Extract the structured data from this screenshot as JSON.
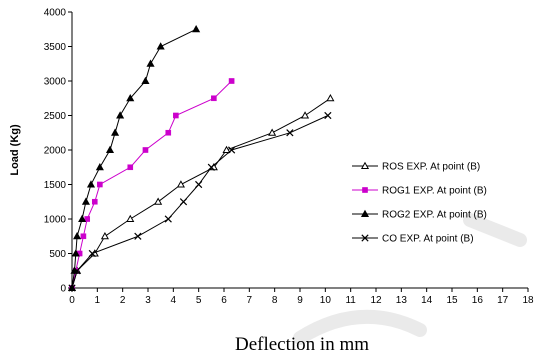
{
  "chart_data": {
    "type": "line",
    "title": "",
    "xlabel": "Deflection in mm",
    "ylabel": "Load  (Kg)",
    "xlim": [
      0,
      18
    ],
    "ylim": [
      0,
      4000
    ],
    "x_ticks": [
      0,
      1,
      2,
      3,
      4,
      5,
      6,
      7,
      8,
      9,
      10,
      11,
      12,
      13,
      14,
      15,
      16,
      17,
      18
    ],
    "y_ticks": [
      0,
      500,
      1000,
      1500,
      2000,
      2500,
      3000,
      3500,
      4000
    ],
    "grid": false,
    "legend_position": "right",
    "series": [
      {
        "name": "ROS  EXP.  At point (B)",
        "color": "#000000",
        "marker": "triangle-open",
        "points": [
          [
            0,
            0
          ],
          [
            0.2,
            250
          ],
          [
            0.9,
            500
          ],
          [
            1.3,
            750
          ],
          [
            2.3,
            1000
          ],
          [
            3.4,
            1250
          ],
          [
            4.3,
            1500
          ],
          [
            5.6,
            1750
          ],
          [
            6.1,
            2000
          ],
          [
            7.9,
            2250
          ],
          [
            9.2,
            2500
          ],
          [
            10.2,
            2750
          ]
        ]
      },
      {
        "name": "ROG1  EXP.  At point (B)",
        "color": "#cc00cc",
        "marker": "square",
        "points": [
          [
            0,
            0
          ],
          [
            0.15,
            250
          ],
          [
            0.3,
            500
          ],
          [
            0.45,
            750
          ],
          [
            0.6,
            1000
          ],
          [
            0.9,
            1250
          ],
          [
            1.1,
            1500
          ],
          [
            2.3,
            1750
          ],
          [
            2.9,
            2000
          ],
          [
            3.8,
            2250
          ],
          [
            4.1,
            2500
          ],
          [
            5.6,
            2750
          ],
          [
            6.3,
            3000
          ]
        ]
      },
      {
        "name": "ROG2  EXP.  At point (B)",
        "color": "#000000",
        "marker": "triangle-filled",
        "points": [
          [
            0,
            0
          ],
          [
            0.1,
            250
          ],
          [
            0.15,
            500
          ],
          [
            0.2,
            750
          ],
          [
            0.4,
            1000
          ],
          [
            0.55,
            1250
          ],
          [
            0.75,
            1500
          ],
          [
            1.1,
            1750
          ],
          [
            1.5,
            2000
          ],
          [
            1.7,
            2250
          ],
          [
            1.9,
            2500
          ],
          [
            2.3,
            2750
          ],
          [
            2.9,
            3000
          ],
          [
            3.1,
            3250
          ],
          [
            3.5,
            3500
          ],
          [
            4.9,
            3750
          ]
        ]
      },
      {
        "name": "CO EXP.  At point (B)",
        "color": "#000000",
        "marker": "x",
        "points": [
          [
            0,
            0
          ],
          [
            0.2,
            250
          ],
          [
            0.8,
            500
          ],
          [
            2.6,
            750
          ],
          [
            3.8,
            1000
          ],
          [
            4.4,
            1250
          ],
          [
            5.0,
            1500
          ],
          [
            5.5,
            1750
          ],
          [
            6.3,
            2000
          ],
          [
            8.6,
            2250
          ],
          [
            10.1,
            2500
          ]
        ]
      }
    ]
  }
}
